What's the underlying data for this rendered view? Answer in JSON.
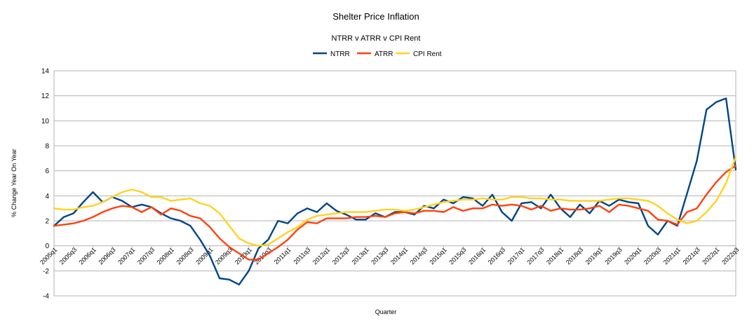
{
  "chart_data": {
    "type": "line",
    "title": "Shelter Price Inflation",
    "subtitle": "NTRR v ATRR v CPI Rent",
    "xlabel": "Quarter",
    "ylabel": "% Change Year On Year",
    "ylim": [
      -4,
      14
    ],
    "yticks": [
      -4,
      -2,
      0,
      2,
      4,
      6,
      8,
      10,
      12,
      14
    ],
    "grid": "horizontal",
    "legend_position": "top",
    "x": [
      "2005q1",
      "2005q2",
      "2005q3",
      "2005q4",
      "2006q1",
      "2006q2",
      "2006q3",
      "2006q4",
      "2007q1",
      "2007q2",
      "2007q3",
      "2007q4",
      "2008q1",
      "2008q2",
      "2008q3",
      "2008q4",
      "2009q1",
      "2009q2",
      "2009q3",
      "2009q4",
      "2010q1",
      "2010q2",
      "2010q3",
      "2010q4",
      "2011q1",
      "2011q2",
      "2011q3",
      "2011q4",
      "2012q1",
      "2012q2",
      "2012q3",
      "2012q4",
      "2013q1",
      "2013q2",
      "2013q3",
      "2013q4",
      "2014q1",
      "2014q2",
      "2014q3",
      "2014q4",
      "2015q1",
      "2015q2",
      "2015q3",
      "2015q4",
      "2016q1",
      "2016q2",
      "2016q3",
      "2016q4",
      "2017q1",
      "2017q2",
      "2017q3",
      "2017q4",
      "2018q1",
      "2018q2",
      "2018q3",
      "2018q4",
      "2019q1",
      "2019q2",
      "2019q3",
      "2019q4",
      "2020q1",
      "2020q2",
      "2020q3",
      "2020q4",
      "2021q1",
      "2021q2",
      "2021q3",
      "2021q4",
      "2022q1",
      "2022q2",
      "2022q3"
    ],
    "x_tick_labels": [
      "2005q1",
      "2005q3",
      "2006q1",
      "2006q3",
      "2007q1",
      "2007q3",
      "2008q1",
      "2008q3",
      "2009q1",
      "2009q3",
      "2010q1",
      "2010q3",
      "2011q1",
      "2011q3",
      "2012q1",
      "2012q3",
      "2013q1",
      "2013q3",
      "2014q1",
      "2014q3",
      "2015q1",
      "2015q3",
      "2016q1",
      "2016q3",
      "2017q1",
      "2017q3",
      "2018q1",
      "2018q3",
      "2019q1",
      "2019q3",
      "2020q1",
      "2020q3",
      "2021q1",
      "2021q3",
      "2022q1",
      "2022q3"
    ],
    "series": [
      {
        "name": "NTRR",
        "color": "#004586",
        "values": [
          1.6,
          2.3,
          2.6,
          3.5,
          4.3,
          3.5,
          3.9,
          3.6,
          3.1,
          3.3,
          3.1,
          2.6,
          2.2,
          2.0,
          1.6,
          0.5,
          -0.8,
          -2.6,
          -2.7,
          -3.1,
          -2.0,
          -0.2,
          0.5,
          2.0,
          1.8,
          2.6,
          3.0,
          2.7,
          3.4,
          2.8,
          2.5,
          2.1,
          2.1,
          2.6,
          2.3,
          2.7,
          2.7,
          2.5,
          3.2,
          3.0,
          3.7,
          3.4,
          3.9,
          3.8,
          3.2,
          4.1,
          2.7,
          2.0,
          3.4,
          3.5,
          3.0,
          4.1,
          3.0,
          2.3,
          3.3,
          2.6,
          3.6,
          3.2,
          3.7,
          3.5,
          3.4,
          1.6,
          0.9,
          2.0,
          1.6,
          4.2,
          6.8,
          10.9,
          11.5,
          11.8,
          6.1
        ]
      },
      {
        "name": "ATRR",
        "color": "#ff420e",
        "values": [
          1.6,
          1.7,
          1.8,
          2.0,
          2.3,
          2.7,
          3.0,
          3.2,
          3.1,
          2.7,
          3.1,
          2.5,
          3.0,
          2.8,
          2.4,
          2.2,
          1.5,
          0.6,
          -0.1,
          -0.6,
          -1.1,
          -1.1,
          -0.6,
          -0.1,
          0.5,
          1.3,
          1.9,
          1.8,
          2.2,
          2.2,
          2.2,
          2.3,
          2.3,
          2.4,
          2.3,
          2.6,
          2.7,
          2.6,
          2.8,
          2.8,
          2.7,
          3.1,
          2.8,
          3.0,
          3.0,
          3.3,
          3.2,
          3.3,
          3.2,
          2.9,
          3.2,
          2.8,
          3.0,
          2.9,
          2.9,
          3.0,
          3.2,
          2.7,
          3.3,
          3.2,
          3.0,
          2.8,
          2.1,
          2.0,
          1.7,
          2.7,
          3.0,
          4.1,
          5.1,
          5.9,
          6.4
        ]
      },
      {
        "name": "CPI Rent",
        "color": "#ffd320",
        "values": [
          3.0,
          2.9,
          2.9,
          3.1,
          3.2,
          3.5,
          3.9,
          4.3,
          4.5,
          4.3,
          3.9,
          3.9,
          3.6,
          3.7,
          3.8,
          3.4,
          3.2,
          2.6,
          1.6,
          0.6,
          0.2,
          0.0,
          0.1,
          0.6,
          1.1,
          1.5,
          2.1,
          2.4,
          2.5,
          2.6,
          2.7,
          2.7,
          2.7,
          2.8,
          2.9,
          2.9,
          2.8,
          2.9,
          3.1,
          3.3,
          3.5,
          3.6,
          3.7,
          3.7,
          3.8,
          3.7,
          3.7,
          3.9,
          3.9,
          3.8,
          3.8,
          3.7,
          3.7,
          3.6,
          3.6,
          3.6,
          3.6,
          3.7,
          3.8,
          3.8,
          3.7,
          3.6,
          3.2,
          2.6,
          2.1,
          1.8,
          2.0,
          2.7,
          3.6,
          5.0,
          7.1
        ]
      }
    ]
  }
}
